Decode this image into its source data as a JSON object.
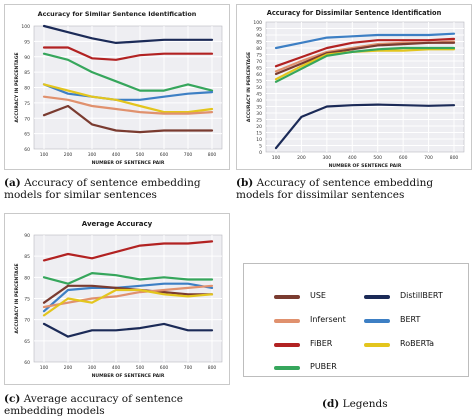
{
  "colors": {
    "USE": "#7a3b30",
    "Infersent": "#e0916e",
    "FiBER": "#b22222",
    "PUBER": "#36a65c",
    "DistillBERT": "#1b2a57",
    "BERT": "#3d7fc4",
    "RoBERTa": "#e3c51d",
    "plot_bg": "#eeeef2",
    "grid": "#ffffff"
  },
  "captions": {
    "a": {
      "tag": "(a)",
      "text": "Accuracy of sentence embedding models for similar sentences"
    },
    "b": {
      "tag": "(b)",
      "text": "Accuracy of sentence embedding models for dissimilar sentences"
    },
    "c": {
      "tag": "(c)",
      "text": "Average accuracy of sentence embedding models"
    },
    "d": {
      "tag": "(d)",
      "text": "Legends"
    }
  },
  "legend": {
    "items": [
      {
        "name": "USE",
        "color": "#7a3b30"
      },
      {
        "name": "DistillBERT",
        "color": "#1b2a57"
      },
      {
        "name": "Infersent",
        "color": "#e0916e"
      },
      {
        "name": "BERT",
        "color": "#3d7fc4"
      },
      {
        "name": "FiBER",
        "color": "#b22222"
      },
      {
        "name": "RoBERTa",
        "color": "#e3c51d"
      },
      {
        "name": "PUBER",
        "color": "#36a65c"
      }
    ]
  },
  "chart_data": [
    {
      "type": "line",
      "title": "Accuracy for Similar Sentence Identification",
      "xlabel": "NUMBER OF SENTENCE PAIR",
      "ylabel": "ACCURACY IN PERCENTAGE",
      "categories": [
        "100",
        "200",
        "300",
        "400",
        "500",
        "600",
        "700",
        "800"
      ],
      "ylim": [
        60,
        100
      ],
      "yticks": [
        60,
        65,
        70,
        75,
        80,
        85,
        90,
        95,
        100
      ],
      "grid": true,
      "series": [
        {
          "key": "DistillBERT",
          "values": [
            100,
            98,
            96,
            94.5,
            95,
            95.5,
            95.5,
            95.5
          ]
        },
        {
          "key": "FiBER",
          "values": [
            93,
            93,
            89.5,
            89,
            90.5,
            91,
            91,
            91
          ]
        },
        {
          "key": "PUBER",
          "values": [
            91,
            89,
            85,
            82,
            79,
            79,
            81,
            79
          ]
        },
        {
          "key": "BERT",
          "values": [
            81,
            78,
            77,
            76,
            76,
            77,
            78,
            78.5
          ]
        },
        {
          "key": "RoBERTa",
          "values": [
            81,
            79,
            77,
            76,
            74,
            72,
            72,
            73
          ]
        },
        {
          "key": "Infersent",
          "values": [
            77,
            76,
            74,
            73,
            72,
            71.5,
            71.5,
            72
          ]
        },
        {
          "key": "USE",
          "values": [
            71,
            74,
            68,
            66,
            65.5,
            66,
            66,
            66
          ]
        }
      ]
    },
    {
      "type": "line",
      "title": "Accuracy for Dissimilar Sentence Identification",
      "xlabel": "NUMBER OF SENTENCE PAIR",
      "ylabel": "ACCURACY IN PERCENTAGE",
      "categories": [
        "100",
        "200",
        "300",
        "400",
        "500",
        "600",
        "700",
        "800"
      ],
      "ylim": [
        0,
        100
      ],
      "yticks": [
        0,
        5,
        10,
        15,
        20,
        25,
        30,
        35,
        40,
        45,
        50,
        55,
        60,
        65,
        70,
        75,
        80,
        85,
        90,
        95,
        100
      ],
      "grid": true,
      "series": [
        {
          "key": "BERT",
          "values": [
            80,
            84,
            88,
            89,
            90,
            90,
            90,
            91
          ]
        },
        {
          "key": "FiBER",
          "values": [
            66,
            73,
            80,
            84,
            86,
            86,
            86,
            87
          ]
        },
        {
          "key": "Infersent",
          "values": [
            62,
            70,
            77,
            80,
            83,
            84,
            84,
            85
          ]
        },
        {
          "key": "USE",
          "values": [
            60,
            68,
            76,
            79,
            82,
            83,
            84,
            84
          ]
        },
        {
          "key": "RoBERTa",
          "values": [
            56,
            66,
            75,
            77,
            78,
            78,
            79,
            79
          ]
        },
        {
          "key": "PUBER",
          "values": [
            54,
            64,
            74,
            77,
            79,
            80,
            80,
            80
          ]
        },
        {
          "key": "DistillBERT",
          "values": [
            3,
            27,
            35,
            36,
            36.5,
            36,
            35.5,
            36
          ]
        }
      ]
    },
    {
      "type": "line",
      "title": "Average Accuracy",
      "xlabel": "NUMBER OF SENTENCE PAIR",
      "ylabel": "ACCURACY IN PERCENTAGE",
      "categories": [
        "100",
        "200",
        "300",
        "400",
        "500",
        "600",
        "700",
        "800"
      ],
      "ylim": [
        60,
        90
      ],
      "yticks": [
        60,
        65,
        70,
        75,
        80,
        85,
        90
      ],
      "grid": true,
      "series": [
        {
          "key": "FiBER",
          "values": [
            84,
            85.5,
            84.5,
            86,
            87.5,
            88,
            88,
            88.5
          ]
        },
        {
          "key": "PUBER",
          "values": [
            80,
            78.5,
            81,
            80.5,
            79.5,
            80,
            79.5,
            79.5
          ]
        },
        {
          "key": "BERT",
          "values": [
            72,
            77,
            77.5,
            77.5,
            78,
            78.5,
            78.5,
            77.5
          ]
        },
        {
          "key": "USE",
          "values": [
            74,
            78,
            78,
            77.5,
            77,
            76.5,
            76,
            76
          ]
        },
        {
          "key": "Infersent",
          "values": [
            73,
            74,
            75,
            75.5,
            76.5,
            77,
            77.5,
            78
          ]
        },
        {
          "key": "RoBERTa",
          "values": [
            71,
            75,
            74,
            77,
            77,
            76,
            75.5,
            76
          ]
        },
        {
          "key": "DistillBERT",
          "values": [
            69,
            66,
            67.5,
            67.5,
            68,
            69,
            67.5,
            67.5
          ]
        }
      ]
    }
  ]
}
